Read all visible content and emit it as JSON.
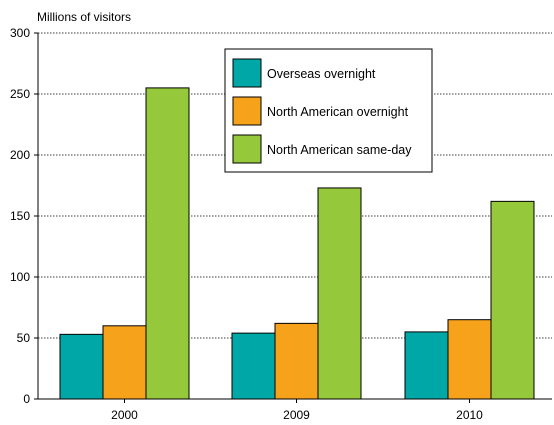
{
  "chart_data": {
    "type": "bar",
    "title": "",
    "xlabel": "",
    "ylabel": "Millions of visitors",
    "categories": [
      "2000",
      "2009",
      "2010"
    ],
    "ylim": [
      0,
      300
    ],
    "yticks": [
      "0",
      "50",
      "100",
      "150",
      "200",
      "250",
      "300"
    ],
    "grid": true,
    "legend_position": "top-right",
    "series": [
      {
        "name": "Overseas overnight",
        "color": "#00A7A7",
        "values": [
          53,
          54,
          55
        ]
      },
      {
        "name": "North American overnight",
        "color": "#F7A21B",
        "values": [
          60,
          62,
          65
        ]
      },
      {
        "name": "North American same-day",
        "color": "#96C83C",
        "values": [
          255,
          173,
          162
        ]
      }
    ]
  }
}
